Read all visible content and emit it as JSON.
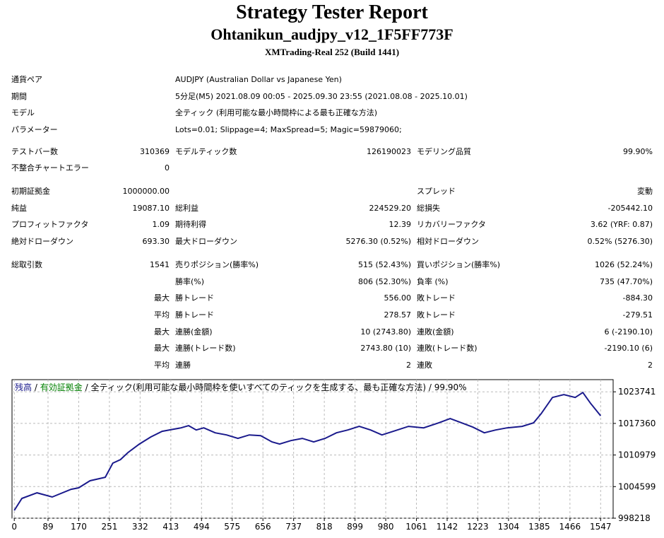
{
  "header": {
    "title": "Strategy Tester Report",
    "subtitle": "Ohtanikun_audjpy_v12_1F5FF773F",
    "server": "XMTrading-Real 252 (Build 1441)"
  },
  "info": [
    [
      "通貨ペア",
      "AUDJPY (Australian Dollar vs Japanese Yen)"
    ],
    [
      "期間",
      "5分足(M5) 2021.08.09 00:05 - 2025.09.30 23:55 (2021.08.08 - 2025.10.01)"
    ],
    [
      "モデル",
      "全ティック (利用可能な最小時間枠による最も正確な方法)"
    ],
    [
      "パラメーター",
      "Lots=0.01; Slippage=4; MaxSpread=5; Magic=59879060;"
    ]
  ],
  "stats": [
    [
      [
        "テストバー数",
        "310369",
        "モデルティック数",
        "126190023",
        "モデリング品質",
        "99.90%"
      ],
      [
        "不整合チャートエラー",
        "0",
        null,
        null,
        null,
        null
      ]
    ],
    [
      [
        "初期証拠金",
        "1000000.00",
        null,
        null,
        "スプレッド",
        "変動"
      ],
      [
        "純益",
        "19087.10",
        "総利益",
        "224529.20",
        "総損失",
        "-205442.10"
      ],
      [
        "プロフィットファクタ",
        "1.09",
        "期待利得",
        "12.39",
        "リカバリーファクタ",
        "3.62 (YRF: 0.87)"
      ],
      [
        "絶対ドローダウン",
        "693.30",
        "最大ドローダウン",
        "5276.30 (0.52%)",
        "相対ドローダウン",
        "0.52% (5276.30)"
      ]
    ],
    [
      [
        "総取引数",
        "1541",
        "売りポジション(勝率%)",
        "515 (52.43%)",
        "買いポジション(勝率%)",
        "1026 (52.24%)"
      ],
      [
        null,
        null,
        "勝率(%)",
        "806 (52.30%)",
        "負率 (%)",
        "735 (47.70%)"
      ],
      [
        null,
        "最大",
        "勝トレード",
        "556.00",
        "敗トレード",
        "-884.30"
      ],
      [
        null,
        "平均",
        "勝トレード",
        "278.57",
        "敗トレード",
        "-279.51"
      ],
      [
        null,
        "最大",
        "連勝(金額)",
        "10 (2743.80)",
        "連敗(金額)",
        "6 (-2190.10)"
      ],
      [
        null,
        "最大",
        "連勝(トレード数)",
        "2743.80 (10)",
        "連敗(トレード数)",
        "-2190.10 (6)"
      ],
      [
        null,
        "平均",
        "連勝",
        "2",
        "連敗",
        "2"
      ]
    ]
  ],
  "chart_data": {
    "type": "line",
    "separator": "/",
    "equity_label": "有効証拠金",
    "equity_color": "#008000",
    "description": "全ティック(利用可能な最小時間枠を使いすべてのティックを生成する、最も正確な方法)",
    "quality": "99.90%",
    "x": [
      0,
      20,
      60,
      100,
      150,
      170,
      200,
      240,
      260,
      280,
      300,
      330,
      360,
      390,
      420,
      440,
      460,
      480,
      500,
      530,
      560,
      590,
      620,
      650,
      680,
      700,
      730,
      760,
      790,
      820,
      850,
      880,
      910,
      940,
      970,
      1000,
      1040,
      1080,
      1120,
      1150,
      1180,
      1210,
      1240,
      1270,
      1300,
      1340,
      1370,
      1390,
      1420,
      1450,
      1480,
      1500,
      1520,
      1547
    ],
    "series": [
      {
        "name": "残高",
        "color": "#1a1a8c",
        "values": [
          999787,
          1002210,
          1003350,
          1002500,
          1004060,
          1004350,
          1005780,
          1006490,
          1009340,
          1010050,
          1011480,
          1013190,
          1014620,
          1015760,
          1016190,
          1016470,
          1016900,
          1016040,
          1016470,
          1015470,
          1015040,
          1014330,
          1015040,
          1014900,
          1013620,
          1013190,
          1013900,
          1014330,
          1013620,
          1014330,
          1015470,
          1016040,
          1016760,
          1016040,
          1015040,
          1015760,
          1016760,
          1016470,
          1017470,
          1018330,
          1017470,
          1016610,
          1015470,
          1016040,
          1016470,
          1016760,
          1017470,
          1019320,
          1022600,
          1023170,
          1022600,
          1023600,
          1021460,
          1018900
        ]
      }
    ],
    "xlim": [
      -6,
      1580
    ],
    "ylim": [
      998218,
      1026200
    ],
    "xticks": [
      0,
      89,
      170,
      251,
      332,
      413,
      494,
      575,
      656,
      737,
      818,
      899,
      980,
      1061,
      1142,
      1223,
      1304,
      1385,
      1466,
      1547
    ],
    "yticks": [
      998218,
      1004599,
      1010979,
      1017360,
      1023741
    ],
    "grid": true
  }
}
